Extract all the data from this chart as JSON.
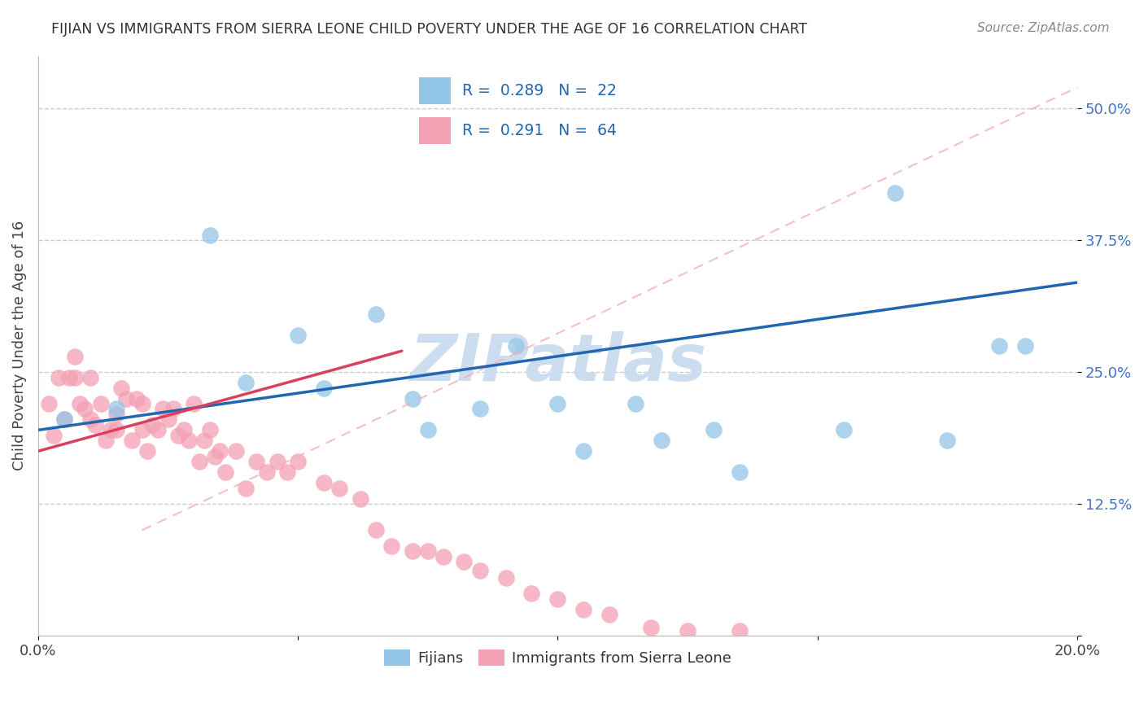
{
  "title": "FIJIAN VS IMMIGRANTS FROM SIERRA LEONE CHILD POVERTY UNDER THE AGE OF 16 CORRELATION CHART",
  "source": "Source: ZipAtlas.com",
  "ylabel": "Child Poverty Under the Age of 16",
  "xlim": [
    0.0,
    0.2
  ],
  "ylim": [
    0.0,
    0.55
  ],
  "x_tick_labels": [
    "0.0%",
    "",
    "",
    "",
    "20.0%"
  ],
  "y_tick_labels": [
    "",
    "12.5%",
    "25.0%",
    "37.5%",
    "50.0%"
  ],
  "legend_label1": "Fijians",
  "legend_label2": "Immigrants from Sierra Leone",
  "R1": "0.289",
  "N1": "22",
  "R2": "0.291",
  "N2": "64",
  "color_fijian": "#92c5e8",
  "color_sierra": "#f4a0b5",
  "color_fijian_line": "#2066b0",
  "color_sierra_line": "#d94060",
  "color_diag_line": "#f0b0bb",
  "watermark_color": "#ccddef",
  "background_color": "#ffffff",
  "fijian_x": [
    0.005,
    0.015,
    0.033,
    0.04,
    0.05,
    0.055,
    0.065,
    0.072,
    0.075,
    0.085,
    0.092,
    0.1,
    0.105,
    0.115,
    0.12,
    0.13,
    0.135,
    0.155,
    0.165,
    0.175,
    0.185,
    0.19
  ],
  "fijian_y": [
    0.205,
    0.215,
    0.38,
    0.24,
    0.285,
    0.235,
    0.305,
    0.225,
    0.195,
    0.215,
    0.275,
    0.22,
    0.175,
    0.22,
    0.185,
    0.195,
    0.155,
    0.195,
    0.42,
    0.185,
    0.275,
    0.275
  ],
  "sierra_x": [
    0.002,
    0.003,
    0.004,
    0.005,
    0.006,
    0.007,
    0.007,
    0.008,
    0.009,
    0.01,
    0.01,
    0.011,
    0.012,
    0.013,
    0.014,
    0.015,
    0.015,
    0.016,
    0.017,
    0.018,
    0.019,
    0.02,
    0.02,
    0.021,
    0.022,
    0.023,
    0.024,
    0.025,
    0.026,
    0.027,
    0.028,
    0.029,
    0.03,
    0.031,
    0.032,
    0.033,
    0.034,
    0.035,
    0.036,
    0.038,
    0.04,
    0.042,
    0.044,
    0.046,
    0.048,
    0.05,
    0.055,
    0.058,
    0.062,
    0.065,
    0.068,
    0.072,
    0.075,
    0.078,
    0.082,
    0.085,
    0.09,
    0.095,
    0.1,
    0.105,
    0.11,
    0.118,
    0.125,
    0.135
  ],
  "sierra_y": [
    0.22,
    0.19,
    0.245,
    0.205,
    0.245,
    0.265,
    0.245,
    0.22,
    0.215,
    0.205,
    0.245,
    0.2,
    0.22,
    0.185,
    0.195,
    0.21,
    0.195,
    0.235,
    0.225,
    0.185,
    0.225,
    0.195,
    0.22,
    0.175,
    0.2,
    0.195,
    0.215,
    0.205,
    0.215,
    0.19,
    0.195,
    0.185,
    0.22,
    0.165,
    0.185,
    0.195,
    0.17,
    0.175,
    0.155,
    0.175,
    0.14,
    0.165,
    0.155,
    0.165,
    0.155,
    0.165,
    0.145,
    0.14,
    0.13,
    0.1,
    0.085,
    0.08,
    0.08,
    0.075,
    0.07,
    0.062,
    0.055,
    0.04,
    0.035,
    0.025,
    0.02,
    0.008,
    0.005,
    0.005
  ],
  "fijian_line_x0": 0.0,
  "fijian_line_y0": 0.195,
  "fijian_line_x1": 0.2,
  "fijian_line_y1": 0.335,
  "sierra_line_x0": 0.0,
  "sierra_line_y0": 0.175,
  "sierra_line_x1": 0.07,
  "sierra_line_y1": 0.27,
  "diag_line_x0": 0.02,
  "diag_line_y0": 0.1,
  "diag_line_x1": 0.2,
  "diag_line_y1": 0.52
}
